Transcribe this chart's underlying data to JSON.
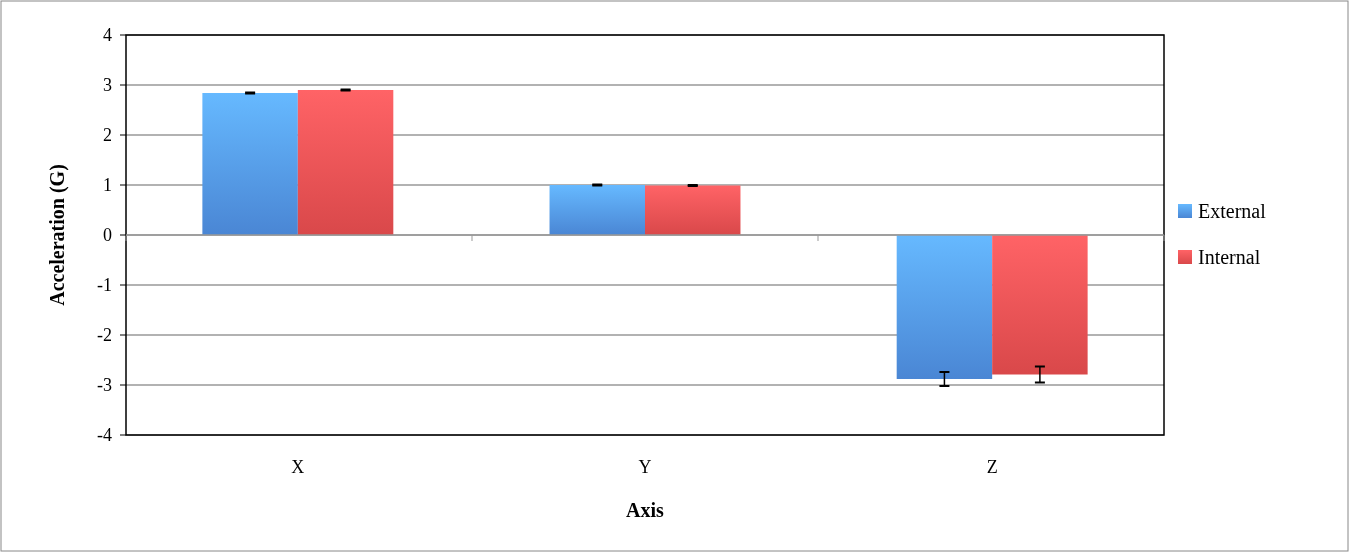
{
  "chart_data": {
    "type": "bar",
    "xlabel": "Axis",
    "ylabel": "Acceleration (G)",
    "categories": [
      "X",
      "Y",
      "Z"
    ],
    "series": [
      {
        "name": "External",
        "color": "#4a86d4",
        "values": [
          2.84,
          1.0,
          -2.88
        ],
        "errors": [
          0.01,
          0.01,
          0.14
        ]
      },
      {
        "name": "Internal",
        "color": "#d9484a",
        "values": [
          2.9,
          0.99,
          -2.79
        ],
        "errors": [
          0.01,
          0.01,
          0.16
        ]
      }
    ],
    "ylim": [
      -4,
      4
    ],
    "yticks": [
      -4,
      -3,
      -2,
      -1,
      0,
      1,
      2,
      3,
      4
    ],
    "grid": "y",
    "legend": "right"
  }
}
